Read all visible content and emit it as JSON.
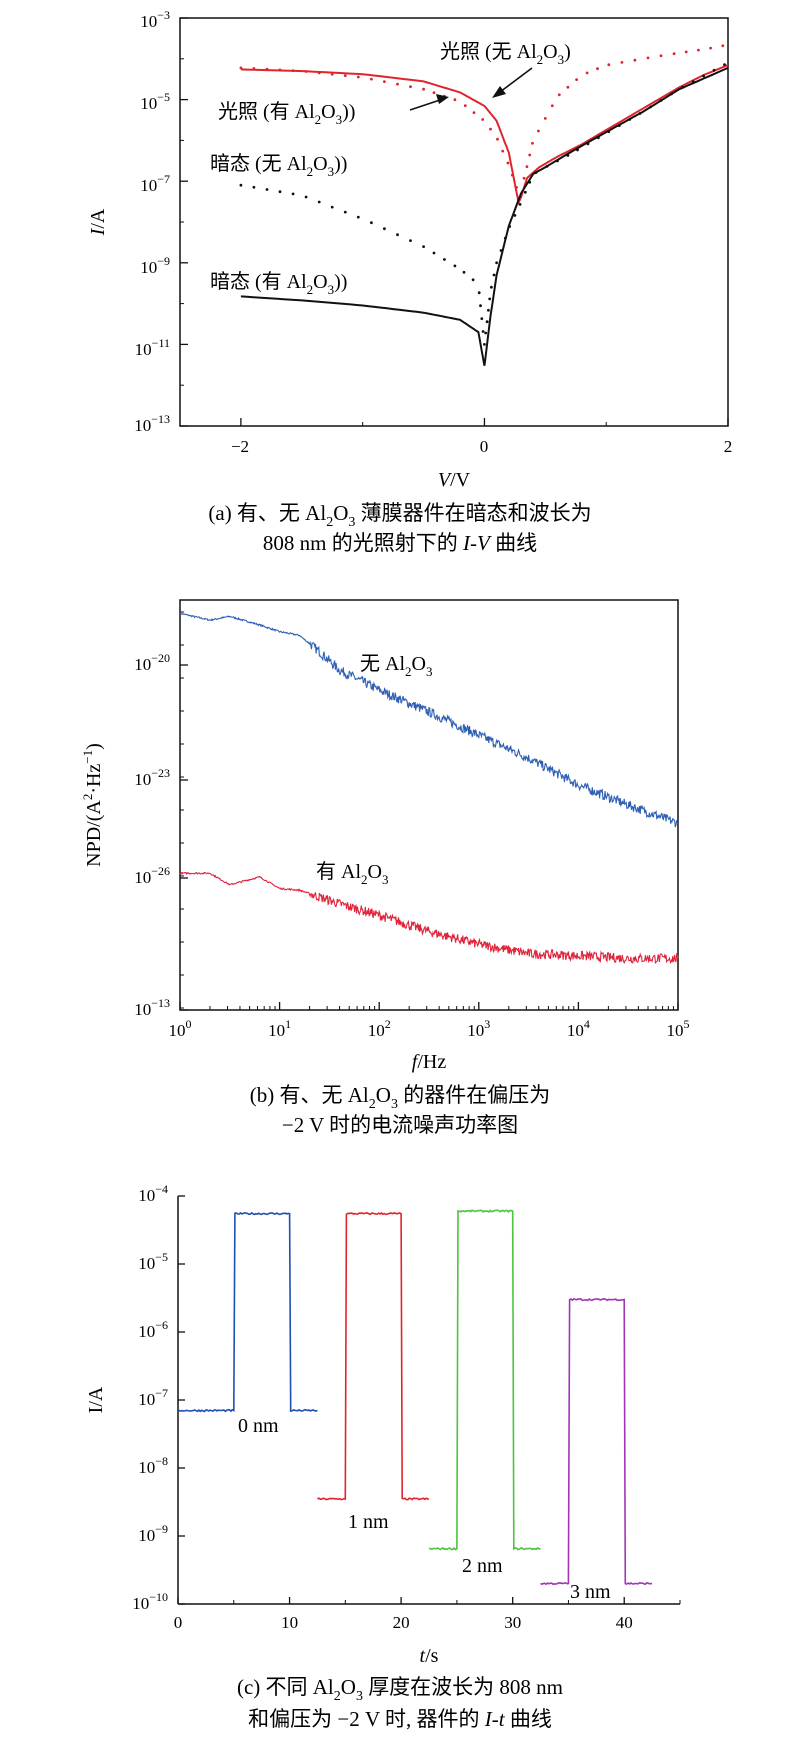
{
  "chart_data": [
    {
      "type": "line",
      "panel": "a",
      "xlabel_it": "V",
      "xlabel_rest": "/V",
      "ylabel_it": "I",
      "ylabel_rest": "/A",
      "xlim": [
        -2.5,
        2
      ],
      "ylim_exp": [
        -13,
        -3
      ],
      "yscale": "log",
      "xticks": [
        -2,
        0,
        2
      ],
      "xtick_labels": [
        "−2",
        "0",
        "2"
      ],
      "yticks_exp": [
        -13,
        -11,
        -9,
        -7,
        -5,
        -3
      ],
      "ytick_exps": [
        "−13",
        "−11",
        "−9",
        "−7",
        "−5",
        "−3"
      ],
      "series": [
        {
          "name": "光照 (无 Al2O3)",
          "style": "dotted",
          "color": "#e0242c",
          "x": [
            -2,
            -1.5,
            -1,
            -0.5,
            -0.2,
            0,
            0.1,
            0.2,
            0.28,
            0.32,
            0.4,
            0.6,
            0.8,
            1,
            1.3,
            1.6,
            1.8,
            2
          ],
          "y": [
            6e-05,
            5e-05,
            3.5e-05,
            1.8e-05,
            9e-06,
            3e-06,
            1.2e-06,
            2.5e-07,
            5e-08,
            1e-07,
            1e-06,
            1.2e-05,
            4e-05,
            7e-05,
            0.0001,
            0.00014,
            0.00017,
            0.00022
          ]
        },
        {
          "name": "光照 (有 Al2O3)",
          "style": "solid",
          "color": "#e0242c",
          "x": [
            -2,
            -1.5,
            -1,
            -0.5,
            -0.2,
            0,
            0.1,
            0.2,
            0.28,
            0.3,
            0.35,
            0.45,
            0.6,
            0.8,
            1,
            1.3,
            1.6,
            1.8,
            2
          ],
          "y": [
            5.5e-05,
            5e-05,
            4.2e-05,
            2.8e-05,
            1.5e-05,
            7e-06,
            3e-06,
            5e-07,
            3e-08,
            4e-08,
            1.2e-07,
            2.2e-07,
            4e-07,
            8e-07,
            1.8e-06,
            6e-06,
            2e-05,
            4e-05,
            7e-05
          ]
        },
        {
          "name": "暗态 (无 Al2O3)",
          "style": "dotted",
          "color": "#111111",
          "x": [
            -2,
            -1.5,
            -1,
            -0.5,
            -0.2,
            -0.05,
            0,
            0.05,
            0.1,
            0.2,
            0.3,
            0.4,
            0.5,
            0.7,
            1,
            1.3,
            1.6,
            2
          ],
          "y": [
            8e-08,
            4.5e-08,
            1.2e-08,
            2.5e-09,
            7e-10,
            3e-10,
            1e-11,
            2e-10,
            1e-09,
            7e-09,
            3e-08,
            1.5e-07,
            2.2e-07,
            4.5e-07,
            1.5e-06,
            5e-06,
            1.8e-05,
            8e-05
          ]
        },
        {
          "name": "暗态 (有 Al2O3)",
          "style": "solid",
          "color": "#111111",
          "x": [
            -2,
            -1.5,
            -1,
            -0.5,
            -0.2,
            -0.05,
            0,
            0.05,
            0.1,
            0.2,
            0.3,
            0.4,
            0.5,
            0.7,
            1,
            1.3,
            1.6,
            2
          ],
          "y": [
            1.5e-10,
            1.2e-10,
            9e-11,
            6e-11,
            4e-11,
            2e-11,
            3e-12,
            5e-11,
            5e-10,
            8e-09,
            5e-08,
            1.5e-07,
            2.2e-07,
            5e-07,
            1.6e-06,
            5e-06,
            1.8e-05,
            6e-05
          ]
        }
      ],
      "annotations": [
        {
          "pre": "光照 (无 Al",
          "sub1": "2",
          "mid": "O",
          "sub2": "3",
          "post": ")"
        },
        {
          "pre": "光照 (有 Al",
          "sub1": "2",
          "mid": "O",
          "sub2": "3",
          "post": "))"
        },
        {
          "pre": "暗态 (无 Al",
          "sub1": "2",
          "mid": "O",
          "sub2": "3",
          "post": "))"
        },
        {
          "pre": "暗态 (有 Al",
          "sub1": "2",
          "mid": "O",
          "sub2": "3",
          "post": "))"
        }
      ],
      "caption": {
        "line1_pre": "(a) 有、无 Al",
        "line1_sub1": "2",
        "line1_mid": "O",
        "line1_sub2": "3",
        "line1_post": " 薄膜器件在暗态和波长为",
        "line2_pre": "808 nm 的光照射下的 ",
        "line2_it": "I-V",
        "line2_post": " 曲线"
      }
    },
    {
      "type": "line",
      "panel": "b",
      "xlabel_it": "f",
      "xlabel_rest": "/Hz",
      "ylabel": "NPD/(A",
      "ylabel_sup1": "2",
      "ylabel_mid": "·Hz",
      "ylabel_sup2": "−1",
      "ylabel_end": ")",
      "xscale": "log",
      "yscale": "log",
      "xlim_exp": [
        0,
        5
      ],
      "xtick_exps": [
        "0",
        "1",
        "2",
        "3",
        "4",
        "5"
      ],
      "ytick_exps": [
        "−13",
        "−26",
        "−23",
        "−20"
      ],
      "series": [
        {
          "name": "无 Al2O3",
          "color": "#2f5fb3",
          "logf": [
            0,
            0.3,
            0.5,
            0.8,
            1,
            1.2,
            1.4,
            1.6,
            2,
            2.5,
            3,
            3.5,
            4,
            4.5,
            5
          ],
          "y": [
            3e-19,
            2e-19,
            2.5e-19,
            1.5e-19,
            1e-19,
            8e-20,
            3e-20,
            1e-20,
            3e-21,
            8e-22,
            2e-22,
            5e-23,
            1e-23,
            3e-24,
            1e-24
          ]
        },
        {
          "name": "有 Al2O3",
          "color": "#e0243c",
          "logf": [
            0,
            0.3,
            0.5,
            0.8,
            1,
            1.2,
            1.4,
            1.6,
            2,
            2.5,
            3,
            3.5,
            4,
            4.5,
            5
          ],
          "y": [
            5e-26,
            5e-26,
            2.5e-26,
            4e-26,
            2e-26,
            1.8e-26,
            1.2e-26,
            8e-27,
            4e-27,
            1.5e-27,
            7e-28,
            4e-28,
            3.5e-28,
            3e-28,
            3e-28
          ]
        }
      ],
      "annotations": [
        {
          "pre": "无 Al",
          "sub1": "2",
          "mid": "O",
          "sub2": "3"
        },
        {
          "pre": "有 Al",
          "sub1": "2",
          "mid": "O",
          "sub2": "3"
        }
      ],
      "caption": {
        "line1_pre": "(b) 有、无 Al",
        "line1_sub1": "2",
        "line1_mid": "O",
        "line1_sub2": "3",
        "line1_post": " 的器件在偏压为",
        "line2": "−2 V 时的电流噪声功率图"
      }
    },
    {
      "type": "line",
      "panel": "c",
      "xlabel_it": "t",
      "xlabel_rest": "/s",
      "ylabel": "I/A",
      "xlim": [
        0,
        45
      ],
      "yscale": "log",
      "ylim_exp": [
        -10,
        -4
      ],
      "xticks": [
        0,
        10,
        20,
        30,
        40
      ],
      "xtick_labels": [
        "0",
        "10",
        "20",
        "30",
        "40"
      ],
      "ytick_exps": [
        "−10",
        "−9",
        "−8",
        "−7",
        "−6",
        "−5",
        "−4"
      ],
      "series": [
        {
          "name": "0 nm",
          "color": "#1f4fb0",
          "t": [
            0,
            5,
            5.1,
            10,
            10.1,
            12.5
          ],
          "y": [
            7e-08,
            7e-08,
            5.5e-05,
            5.5e-05,
            7e-08,
            7e-08
          ]
        },
        {
          "name": "1 nm",
          "color": "#e0242c",
          "t": [
            12.5,
            15,
            15.1,
            20,
            20.1,
            22.5
          ],
          "y": [
            3.5e-09,
            3.5e-09,
            5.5e-05,
            5.5e-05,
            3.5e-09,
            3.5e-09
          ]
        },
        {
          "name": "2 nm",
          "color": "#4cc43c",
          "t": [
            22.5,
            25,
            25.1,
            30,
            30.1,
            32.5
          ],
          "y": [
            6.5e-10,
            6.5e-10,
            6e-05,
            6e-05,
            6.5e-10,
            6.5e-10
          ]
        },
        {
          "name": "3 nm",
          "color": "#a035b5",
          "t": [
            32.5,
            35,
            35.1,
            40,
            40.1,
            42.5
          ],
          "y": [
            2e-10,
            2e-10,
            3e-06,
            3e-06,
            2e-10,
            2e-10
          ]
        }
      ],
      "caption": {
        "line1_pre": "(c) 不同 Al",
        "line1_sub1": "2",
        "line1_mid": "O",
        "line1_sub2": "3",
        "line1_post": " 厚度在波长为 808 nm",
        "line2_pre": "和偏压为 −2 V 时, 器件的 ",
        "line2_it": "I-t",
        "line2_post": " 曲线"
      }
    }
  ]
}
